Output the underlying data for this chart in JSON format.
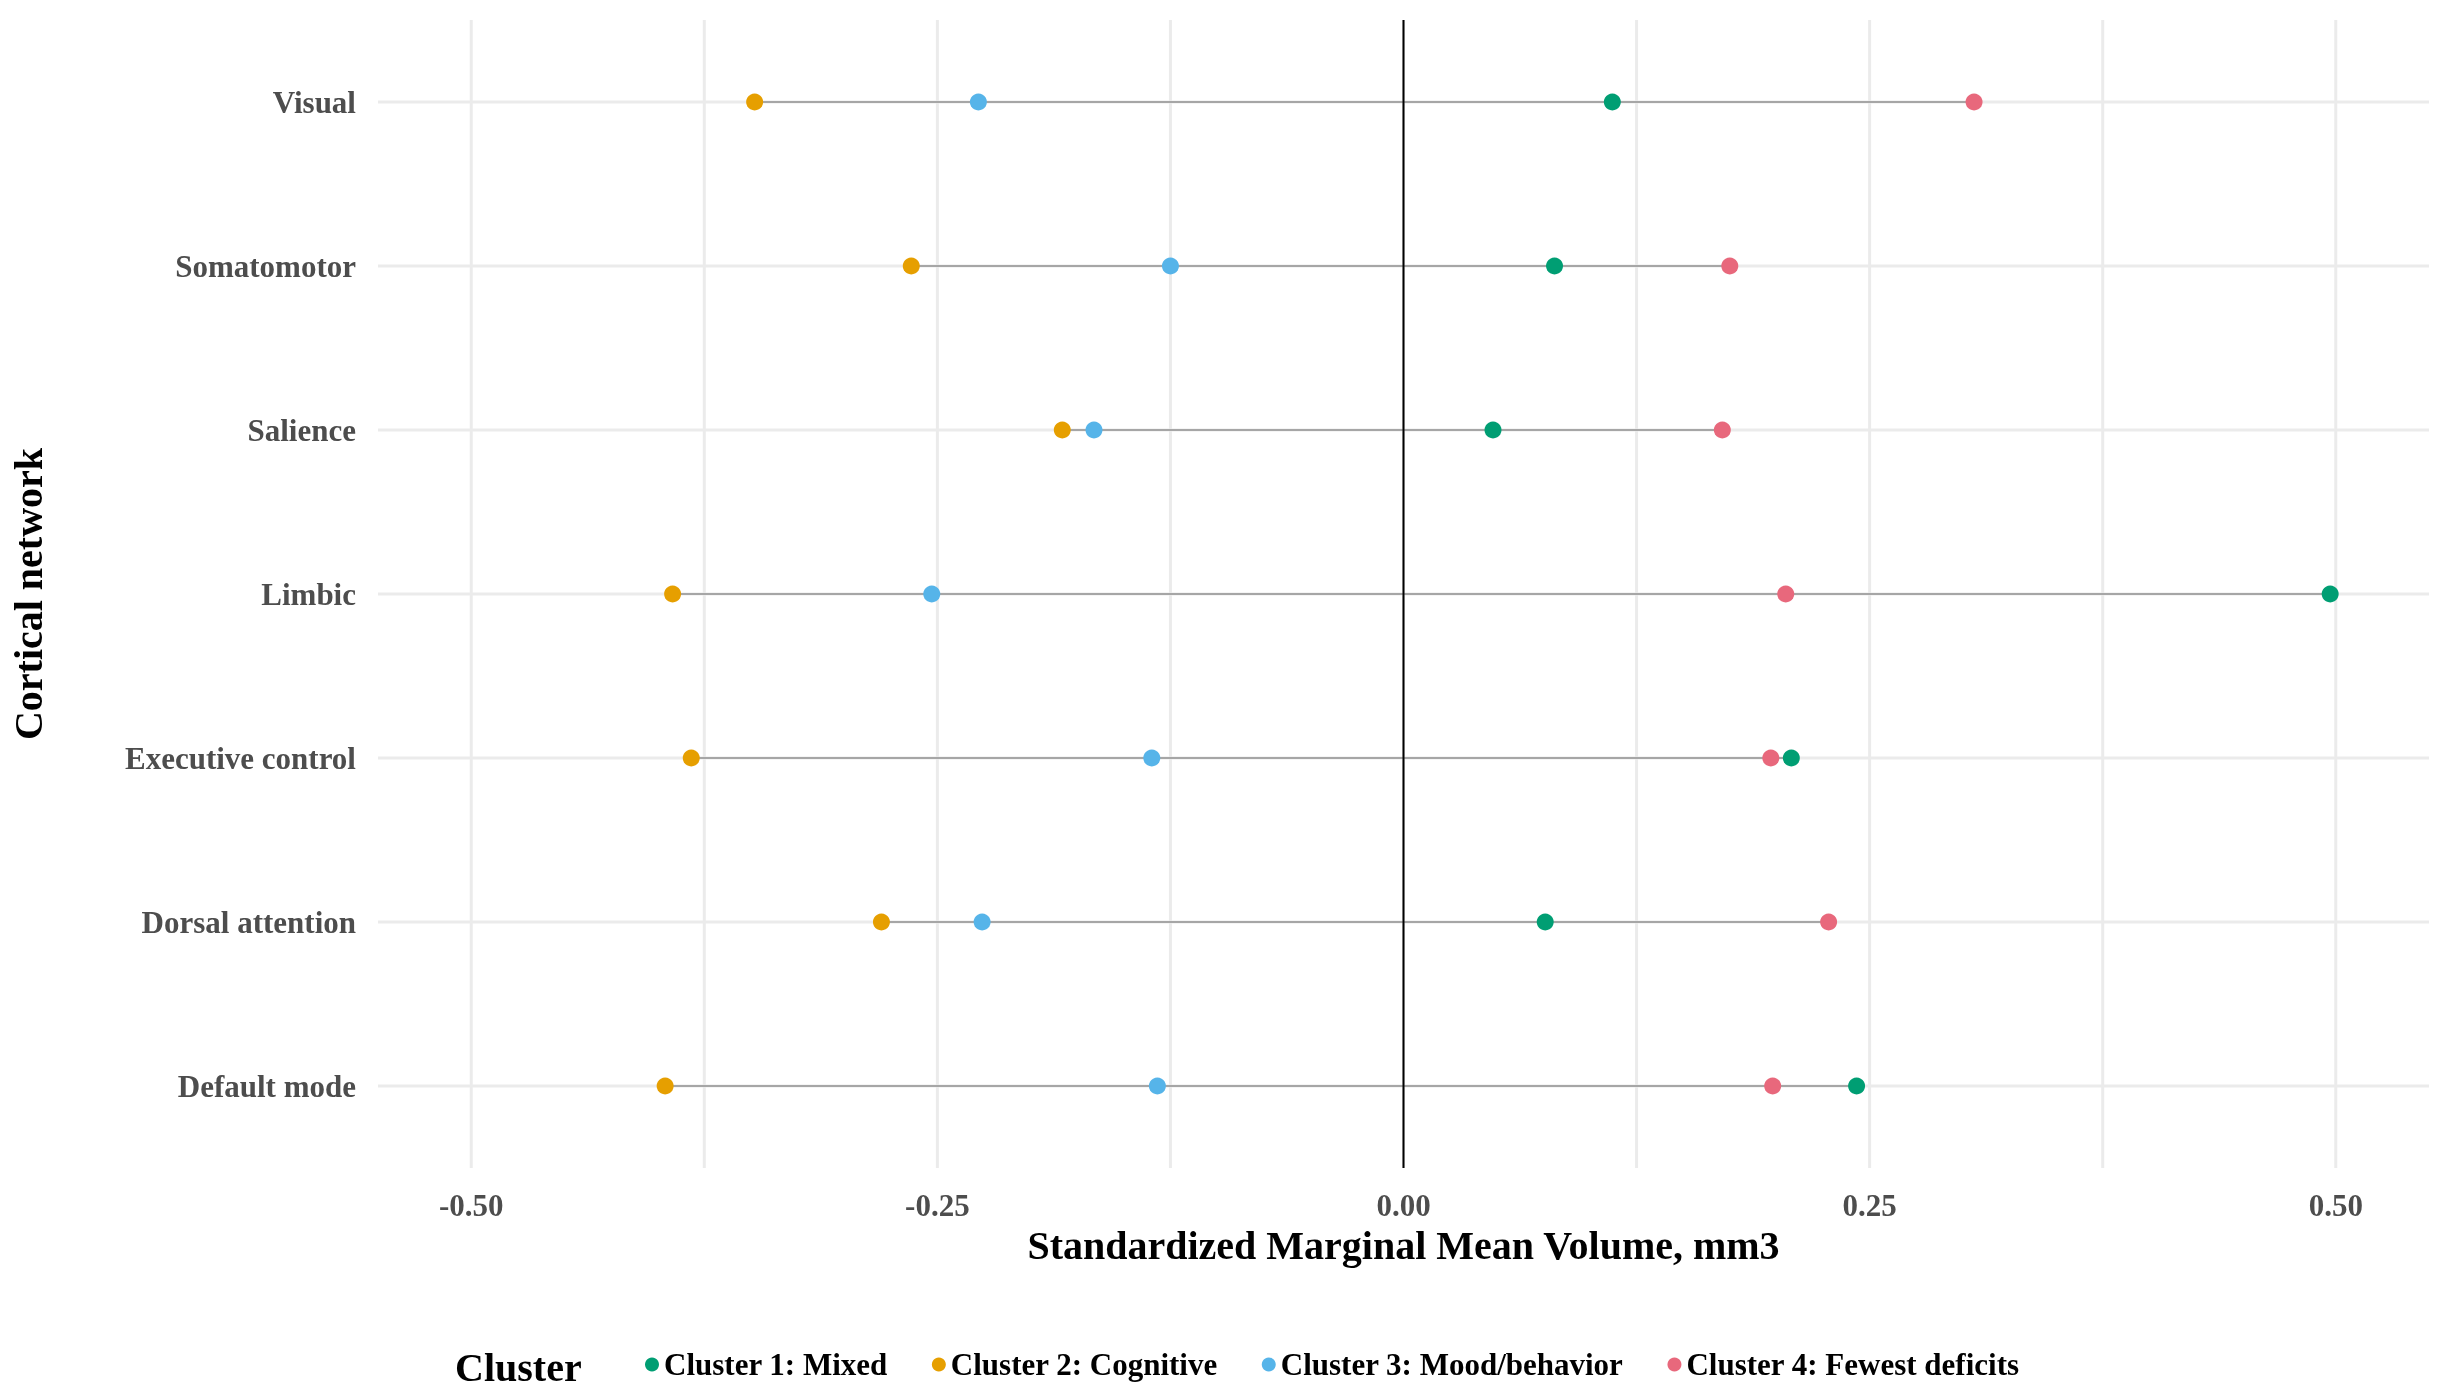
{
  "chart_data": {
    "type": "scatter",
    "xlabel": "Standardized Marginal Mean Volume, mm3",
    "ylabel": "Cortical network",
    "legend_title": "Cluster",
    "categories": [
      "Visual",
      "Somatomotor",
      "Salience",
      "Limbic",
      "Executive control",
      "Dorsal attention",
      "Default mode"
    ],
    "series": [
      {
        "name": "Cluster 1: Mixed",
        "color": "#009e73",
        "values": [
          0.112,
          0.081,
          0.048,
          0.497,
          0.208,
          0.076,
          0.243
        ]
      },
      {
        "name": "Cluster 2: Cognitive",
        "color": "#e69f00",
        "values": [
          -0.348,
          -0.264,
          -0.183,
          -0.392,
          -0.382,
          -0.28,
          -0.396
        ]
      },
      {
        "name": "Cluster 3: Mood/behavior",
        "color": "#56b4e9",
        "values": [
          -0.228,
          -0.125,
          -0.166,
          -0.253,
          -0.135,
          -0.226,
          -0.132
        ]
      },
      {
        "name": "Cluster 4: Fewest deficits",
        "color": "#e8687c",
        "values": [
          0.306,
          0.175,
          0.171,
          0.205,
          0.197,
          0.228,
          0.198
        ]
      }
    ],
    "orientation": "horizontal",
    "xlim": [
      -0.55,
      0.55
    ],
    "xticks": [
      {
        "value": -0.5,
        "label": "-0.50"
      },
      {
        "value": -0.375,
        "label": null
      },
      {
        "value": -0.25,
        "label": "-0.25"
      },
      {
        "value": -0.125,
        "label": null
      },
      {
        "value": 0,
        "label": "0.00"
      },
      {
        "value": 0.125,
        "label": null
      },
      {
        "value": 0.25,
        "label": "0.25"
      },
      {
        "value": 0.375,
        "label": null
      },
      {
        "value": 0.5,
        "label": "0.50"
      }
    ],
    "ref_lines": [
      {
        "axis": "x",
        "value": 0,
        "color": "#000000"
      }
    ],
    "grid": true,
    "legend": "bottom",
    "marker": "circle"
  }
}
